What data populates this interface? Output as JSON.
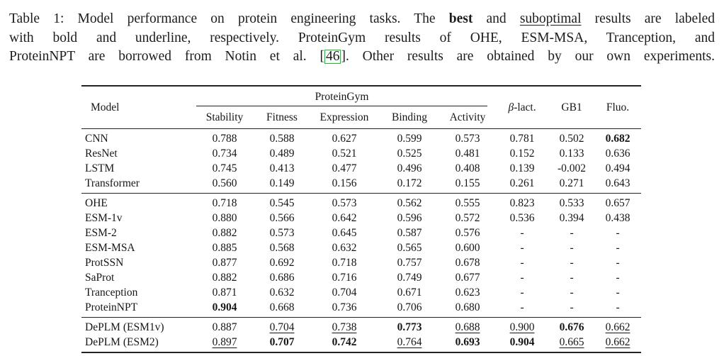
{
  "caption": {
    "line1_pre": "Table 1: Model performance on protein engineering tasks. The ",
    "line1_bold": "best",
    "line1_mid": " and ",
    "line1_underline": "suboptimal",
    "line1_post": " results are labeled",
    "line2": "with bold and underline, respectively. ProteinGym results of OHE, ESM-MSA, Tranception, and",
    "line3_pre": "ProteinNPT are borrowed from Notin et al. [",
    "line3_cite": "46",
    "line3_post": "]. Other results are obtained by our own experiments.",
    "cite_box_color": "#00cf22"
  },
  "table": {
    "header": {
      "model": "Model",
      "group": "ProteinGym",
      "blact_sym": "β",
      "blact_rest": "-lact.",
      "gb1": "GB1",
      "fluo": "Fluo."
    },
    "subcolumns": [
      "Stability",
      "Fitness",
      "Expression",
      "Binding",
      "Activity"
    ],
    "groups": [
      {
        "rows": [
          {
            "model": "CNN",
            "cells": [
              {
                "v": "0.788",
                "s": "p"
              },
              {
                "v": "0.588",
                "s": "p"
              },
              {
                "v": "0.627",
                "s": "p"
              },
              {
                "v": "0.599",
                "s": "p"
              },
              {
                "v": "0.573",
                "s": "p"
              },
              {
                "v": "0.781",
                "s": "p"
              },
              {
                "v": "0.502",
                "s": "p"
              },
              {
                "v": "0.682",
                "s": "b"
              }
            ]
          },
          {
            "model": "ResNet",
            "cells": [
              {
                "v": "0.734",
                "s": "p"
              },
              {
                "v": "0.489",
                "s": "p"
              },
              {
                "v": "0.521",
                "s": "p"
              },
              {
                "v": "0.525",
                "s": "p"
              },
              {
                "v": "0.481",
                "s": "p"
              },
              {
                "v": "0.152",
                "s": "p"
              },
              {
                "v": "0.133",
                "s": "p"
              },
              {
                "v": "0.636",
                "s": "p"
              }
            ]
          },
          {
            "model": "LSTM",
            "cells": [
              {
                "v": "0.745",
                "s": "p"
              },
              {
                "v": "0.413",
                "s": "p"
              },
              {
                "v": "0.477",
                "s": "p"
              },
              {
                "v": "0.496",
                "s": "p"
              },
              {
                "v": "0.408",
                "s": "p"
              },
              {
                "v": "0.139",
                "s": "p"
              },
              {
                "v": "-0.002",
                "s": "p"
              },
              {
                "v": "0.494",
                "s": "p"
              }
            ]
          },
          {
            "model": "Transformer",
            "cells": [
              {
                "v": "0.560",
                "s": "p"
              },
              {
                "v": "0.149",
                "s": "p"
              },
              {
                "v": "0.156",
                "s": "p"
              },
              {
                "v": "0.172",
                "s": "p"
              },
              {
                "v": "0.155",
                "s": "p"
              },
              {
                "v": "0.261",
                "s": "p"
              },
              {
                "v": "0.271",
                "s": "p"
              },
              {
                "v": "0.643",
                "s": "p"
              }
            ]
          }
        ]
      },
      {
        "rows": [
          {
            "model": "OHE",
            "cells": [
              {
                "v": "0.718",
                "s": "p"
              },
              {
                "v": "0.545",
                "s": "p"
              },
              {
                "v": "0.573",
                "s": "p"
              },
              {
                "v": "0.562",
                "s": "p"
              },
              {
                "v": "0.555",
                "s": "p"
              },
              {
                "v": "0.823",
                "s": "p"
              },
              {
                "v": "0.533",
                "s": "p"
              },
              {
                "v": "0.657",
                "s": "p"
              }
            ]
          },
          {
            "model": "ESM-1v",
            "cells": [
              {
                "v": "0.880",
                "s": "p"
              },
              {
                "v": "0.566",
                "s": "p"
              },
              {
                "v": "0.642",
                "s": "p"
              },
              {
                "v": "0.596",
                "s": "p"
              },
              {
                "v": "0.572",
                "s": "p"
              },
              {
                "v": "0.536",
                "s": "p"
              },
              {
                "v": "0.394",
                "s": "p"
              },
              {
                "v": "0.438",
                "s": "p"
              }
            ]
          },
          {
            "model": "ESM-2",
            "cells": [
              {
                "v": "0.882",
                "s": "p"
              },
              {
                "v": "0.573",
                "s": "p"
              },
              {
                "v": "0.645",
                "s": "p"
              },
              {
                "v": "0.587",
                "s": "p"
              },
              {
                "v": "0.576",
                "s": "p"
              },
              {
                "v": "-",
                "s": "p"
              },
              {
                "v": "-",
                "s": "p"
              },
              {
                "v": "-",
                "s": "p"
              }
            ]
          },
          {
            "model": "ESM-MSA",
            "cells": [
              {
                "v": "0.885",
                "s": "p"
              },
              {
                "v": "0.568",
                "s": "p"
              },
              {
                "v": "0.632",
                "s": "p"
              },
              {
                "v": "0.565",
                "s": "p"
              },
              {
                "v": "0.600",
                "s": "p"
              },
              {
                "v": "-",
                "s": "p"
              },
              {
                "v": "-",
                "s": "p"
              },
              {
                "v": "-",
                "s": "p"
              }
            ]
          },
          {
            "model": "ProtSSN",
            "cells": [
              {
                "v": "0.877",
                "s": "p"
              },
              {
                "v": "0.692",
                "s": "p"
              },
              {
                "v": "0.718",
                "s": "p"
              },
              {
                "v": "0.757",
                "s": "p"
              },
              {
                "v": "0.678",
                "s": "p"
              },
              {
                "v": "-",
                "s": "p"
              },
              {
                "v": "-",
                "s": "p"
              },
              {
                "v": "-",
                "s": "p"
              }
            ]
          },
          {
            "model": "SaProt",
            "cells": [
              {
                "v": "0.882",
                "s": "p"
              },
              {
                "v": "0.686",
                "s": "p"
              },
              {
                "v": "0.716",
                "s": "p"
              },
              {
                "v": "0.749",
                "s": "p"
              },
              {
                "v": "0.677",
                "s": "p"
              },
              {
                "v": "-",
                "s": "p"
              },
              {
                "v": "-",
                "s": "p"
              },
              {
                "v": "-",
                "s": "p"
              }
            ]
          },
          {
            "model": "Tranception",
            "cells": [
              {
                "v": "0.871",
                "s": "p"
              },
              {
                "v": "0.632",
                "s": "p"
              },
              {
                "v": "0.704",
                "s": "p"
              },
              {
                "v": "0.671",
                "s": "p"
              },
              {
                "v": "0.623",
                "s": "p"
              },
              {
                "v": "-",
                "s": "p"
              },
              {
                "v": "-",
                "s": "p"
              },
              {
                "v": "-",
                "s": "p"
              }
            ]
          },
          {
            "model": "ProteinNPT",
            "cells": [
              {
                "v": "0.904",
                "s": "b"
              },
              {
                "v": "0.668",
                "s": "p"
              },
              {
                "v": "0.736",
                "s": "p"
              },
              {
                "v": "0.706",
                "s": "p"
              },
              {
                "v": "0.680",
                "s": "p"
              },
              {
                "v": "-",
                "s": "p"
              },
              {
                "v": "-",
                "s": "p"
              },
              {
                "v": "-",
                "s": "p"
              }
            ]
          }
        ]
      },
      {
        "rows": [
          {
            "model": "DePLM (ESM1v)",
            "cells": [
              {
                "v": "0.887",
                "s": "p"
              },
              {
                "v": "0.704",
                "s": "u"
              },
              {
                "v": "0.738",
                "s": "u"
              },
              {
                "v": "0.773",
                "s": "b"
              },
              {
                "v": "0.688",
                "s": "u"
              },
              {
                "v": "0.900",
                "s": "u"
              },
              {
                "v": "0.676",
                "s": "b"
              },
              {
                "v": "0.662",
                "s": "u"
              }
            ]
          },
          {
            "model": "DePLM (ESM2)",
            "cells": [
              {
                "v": "0.897",
                "s": "u"
              },
              {
                "v": "0.707",
                "s": "b"
              },
              {
                "v": "0.742",
                "s": "b"
              },
              {
                "v": "0.764",
                "s": "u"
              },
              {
                "v": "0.693",
                "s": "b"
              },
              {
                "v": "0.904",
                "s": "b"
              },
              {
                "v": "0.665",
                "s": "u"
              },
              {
                "v": "0.662",
                "s": "u"
              }
            ]
          }
        ]
      }
    ]
  }
}
